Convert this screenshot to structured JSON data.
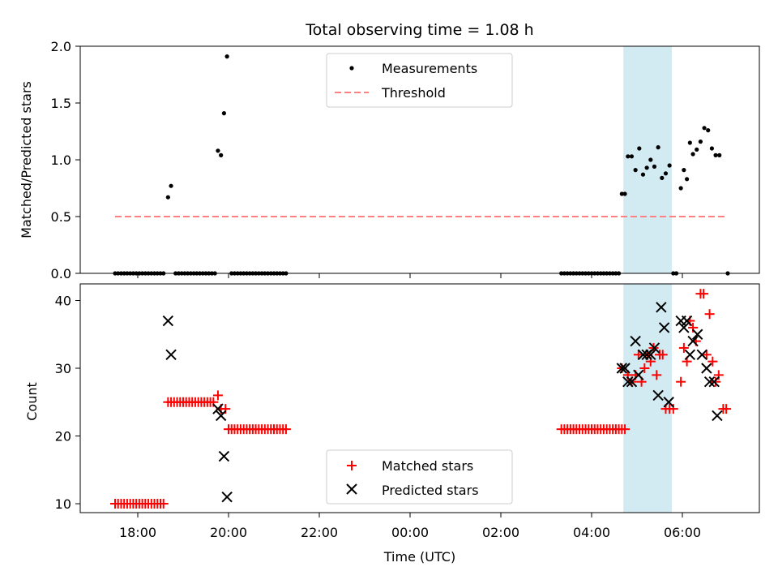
{
  "colors": {
    "measurement": "#000000",
    "threshold": "#ff8080",
    "matched": "#ff0000",
    "predicted": "#000000",
    "highlight": "#add8e6"
  },
  "chart_data": [
    {
      "type": "scatter",
      "title": "Total observing time = 1.08 h",
      "xlabel": "",
      "ylabel": "Matched/Predicted stars",
      "ylim": [
        0,
        2.0
      ],
      "yticks": [
        "0.0",
        "0.5",
        "1.0",
        "1.5",
        "2.0"
      ],
      "xlim": [
        "17:20",
        "07:40"
      ],
      "highlight_span": [
        "04:42",
        "05:46"
      ],
      "legend": {
        "position": "top-center",
        "entries": [
          "Measurements",
          "Threshold"
        ]
      },
      "threshold": {
        "name": "Threshold",
        "value": 0.5,
        "x_range": [
          "17:30",
          "07:00"
        ]
      },
      "series": [
        {
          "name": "Measurements",
          "points": [
            [
              "17:30",
              0
            ],
            [
              "17:34",
              0
            ],
            [
              "17:38",
              0
            ],
            [
              "17:42",
              0
            ],
            [
              "17:46",
              0
            ],
            [
              "17:50",
              0
            ],
            [
              "17:54",
              0
            ],
            [
              "17:58",
              0
            ],
            [
              "18:02",
              0
            ],
            [
              "18:06",
              0
            ],
            [
              "18:10",
              0
            ],
            [
              "18:14",
              0
            ],
            [
              "18:18",
              0
            ],
            [
              "18:22",
              0
            ],
            [
              "18:26",
              0
            ],
            [
              "18:30",
              0
            ],
            [
              "18:34",
              0
            ],
            [
              "18:40",
              0.67
            ],
            [
              "18:44",
              0.77
            ],
            [
              "18:50",
              0
            ],
            [
              "18:54",
              0
            ],
            [
              "18:58",
              0
            ],
            [
              "19:02",
              0
            ],
            [
              "19:06",
              0
            ],
            [
              "19:10",
              0
            ],
            [
              "19:14",
              0
            ],
            [
              "19:18",
              0
            ],
            [
              "19:22",
              0
            ],
            [
              "19:26",
              0
            ],
            [
              "19:30",
              0
            ],
            [
              "19:34",
              0
            ],
            [
              "19:38",
              0
            ],
            [
              "19:42",
              0
            ],
            [
              "19:46",
              1.08
            ],
            [
              "19:50",
              1.04
            ],
            [
              "19:54",
              1.41
            ],
            [
              "19:58",
              1.91
            ],
            [
              "20:04",
              0
            ],
            [
              "20:08",
              0
            ],
            [
              "20:12",
              0
            ],
            [
              "20:16",
              0
            ],
            [
              "20:20",
              0
            ],
            [
              "20:24",
              0
            ],
            [
              "20:28",
              0
            ],
            [
              "20:32",
              0
            ],
            [
              "20:36",
              0
            ],
            [
              "20:40",
              0
            ],
            [
              "20:44",
              0
            ],
            [
              "20:48",
              0
            ],
            [
              "20:52",
              0
            ],
            [
              "20:56",
              0
            ],
            [
              "21:00",
              0
            ],
            [
              "21:04",
              0
            ],
            [
              "21:08",
              0
            ],
            [
              "21:12",
              0
            ],
            [
              "21:16",
              0
            ],
            [
              "03:20",
              0
            ],
            [
              "03:24",
              0
            ],
            [
              "03:28",
              0
            ],
            [
              "03:32",
              0
            ],
            [
              "03:36",
              0
            ],
            [
              "03:40",
              0
            ],
            [
              "03:44",
              0
            ],
            [
              "03:48",
              0
            ],
            [
              "03:52",
              0
            ],
            [
              "03:56",
              0
            ],
            [
              "04:00",
              0
            ],
            [
              "04:04",
              0
            ],
            [
              "04:08",
              0
            ],
            [
              "04:12",
              0
            ],
            [
              "04:16",
              0
            ],
            [
              "04:20",
              0
            ],
            [
              "04:24",
              0
            ],
            [
              "04:28",
              0
            ],
            [
              "04:32",
              0
            ],
            [
              "04:36",
              0
            ],
            [
              "04:40",
              0.7
            ],
            [
              "04:44",
              0.7
            ],
            [
              "04:48",
              1.03
            ],
            [
              "04:53",
              1.03
            ],
            [
              "04:58",
              0.91
            ],
            [
              "05:03",
              1.1
            ],
            [
              "05:08",
              0.87
            ],
            [
              "05:13",
              0.93
            ],
            [
              "05:18",
              1.0
            ],
            [
              "05:23",
              0.94
            ],
            [
              "05:28",
              1.11
            ],
            [
              "05:33",
              0.84
            ],
            [
              "05:38",
              0.88
            ],
            [
              "05:43",
              0.95
            ],
            [
              "05:48",
              0
            ],
            [
              "05:52",
              0
            ],
            [
              "05:58",
              0.75
            ],
            [
              "06:02",
              0.91
            ],
            [
              "06:06",
              0.83
            ],
            [
              "06:10",
              1.15
            ],
            [
              "06:14",
              1.05
            ],
            [
              "06:19",
              1.09
            ],
            [
              "06:24",
              1.16
            ],
            [
              "06:29",
              1.28
            ],
            [
              "06:34",
              1.26
            ],
            [
              "06:39",
              1.1
            ],
            [
              "06:44",
              1.04
            ],
            [
              "06:49",
              1.04
            ],
            [
              "07:00",
              0
            ]
          ]
        }
      ]
    },
    {
      "type": "scatter",
      "title": "",
      "xlabel": "Time (UTC)",
      "ylabel": "Count",
      "ylim": [
        8.5,
        42.5
      ],
      "yticks": [
        "10",
        "20",
        "30",
        "40"
      ],
      "xticks": [
        "18:00",
        "20:00",
        "22:00",
        "00:00",
        "02:00",
        "04:00",
        "06:00"
      ],
      "xlim": [
        "17:20",
        "07:40"
      ],
      "highlight_span": [
        "04:42",
        "05:46"
      ],
      "legend": {
        "position": "bottom-center",
        "entries": [
          "Matched stars",
          "Predicted stars"
        ]
      },
      "series": [
        {
          "name": "Matched stars",
          "marker": "plus",
          "points": [
            [
              "17:30",
              10
            ],
            [
              "17:34",
              10
            ],
            [
              "17:38",
              10
            ],
            [
              "17:42",
              10
            ],
            [
              "17:46",
              10
            ],
            [
              "17:50",
              10
            ],
            [
              "17:54",
              10
            ],
            [
              "17:58",
              10
            ],
            [
              "18:02",
              10
            ],
            [
              "18:06",
              10
            ],
            [
              "18:10",
              10
            ],
            [
              "18:14",
              10
            ],
            [
              "18:18",
              10
            ],
            [
              "18:22",
              10
            ],
            [
              "18:26",
              10
            ],
            [
              "18:30",
              10
            ],
            [
              "18:34",
              10
            ],
            [
              "18:40",
              25
            ],
            [
              "18:44",
              25
            ],
            [
              "18:48",
              25
            ],
            [
              "18:52",
              25
            ],
            [
              "18:56",
              25
            ],
            [
              "19:00",
              25
            ],
            [
              "19:04",
              25
            ],
            [
              "19:08",
              25
            ],
            [
              "19:12",
              25
            ],
            [
              "19:16",
              25
            ],
            [
              "19:20",
              25
            ],
            [
              "19:24",
              25
            ],
            [
              "19:28",
              25
            ],
            [
              "19:32",
              25
            ],
            [
              "19:36",
              25
            ],
            [
              "19:40",
              25
            ],
            [
              "19:46",
              26
            ],
            [
              "19:50",
              24
            ],
            [
              "19:56",
              24
            ],
            [
              "20:00",
              21
            ],
            [
              "20:04",
              21
            ],
            [
              "20:08",
              21
            ],
            [
              "20:12",
              21
            ],
            [
              "20:16",
              21
            ],
            [
              "20:20",
              21
            ],
            [
              "20:24",
              21
            ],
            [
              "20:28",
              21
            ],
            [
              "20:32",
              21
            ],
            [
              "20:36",
              21
            ],
            [
              "20:40",
              21
            ],
            [
              "20:44",
              21
            ],
            [
              "20:48",
              21
            ],
            [
              "20:52",
              21
            ],
            [
              "20:56",
              21
            ],
            [
              "21:00",
              21
            ],
            [
              "21:04",
              21
            ],
            [
              "21:08",
              21
            ],
            [
              "21:12",
              21
            ],
            [
              "21:16",
              21
            ],
            [
              "03:20",
              21
            ],
            [
              "03:24",
              21
            ],
            [
              "03:28",
              21
            ],
            [
              "03:32",
              21
            ],
            [
              "03:36",
              21
            ],
            [
              "03:40",
              21
            ],
            [
              "03:44",
              21
            ],
            [
              "03:48",
              21
            ],
            [
              "03:52",
              21
            ],
            [
              "03:56",
              21
            ],
            [
              "04:00",
              21
            ],
            [
              "04:04",
              21
            ],
            [
              "04:08",
              21
            ],
            [
              "04:12",
              21
            ],
            [
              "04:16",
              21
            ],
            [
              "04:20",
              21
            ],
            [
              "04:24",
              21
            ],
            [
              "04:28",
              21
            ],
            [
              "04:32",
              21
            ],
            [
              "04:36",
              21
            ],
            [
              "04:40",
              21
            ],
            [
              "04:44",
              21
            ],
            [
              "04:40",
              30
            ],
            [
              "04:48",
              29
            ],
            [
              "04:53",
              28
            ],
            [
              "04:58",
              29
            ],
            [
              "05:02",
              32
            ],
            [
              "05:06",
              28
            ],
            [
              "05:10",
              30
            ],
            [
              "05:14",
              32
            ],
            [
              "05:18",
              31
            ],
            [
              "05:22",
              33
            ],
            [
              "05:26",
              29
            ],
            [
              "05:30",
              32
            ],
            [
              "05:34",
              32
            ],
            [
              "05:38",
              24
            ],
            [
              "05:43",
              24
            ],
            [
              "05:48",
              24
            ],
            [
              "05:58",
              28
            ],
            [
              "06:02",
              33
            ],
            [
              "06:06",
              31
            ],
            [
              "06:10",
              37
            ],
            [
              "06:14",
              36
            ],
            [
              "06:18",
              34
            ],
            [
              "06:24",
              41
            ],
            [
              "06:28",
              41
            ],
            [
              "06:32",
              32
            ],
            [
              "06:36",
              38
            ],
            [
              "06:40",
              31
            ],
            [
              "06:44",
              28
            ],
            [
              "06:48",
              29
            ],
            [
              "06:54",
              24
            ],
            [
              "06:58",
              24
            ]
          ]
        },
        {
          "name": "Predicted stars",
          "marker": "x",
          "points": [
            [
              "18:40",
              37
            ],
            [
              "18:44",
              32
            ],
            [
              "19:46",
              24
            ],
            [
              "19:50",
              23
            ],
            [
              "19:54",
              17
            ],
            [
              "19:58",
              11
            ],
            [
              "04:40",
              30
            ],
            [
              "04:44",
              30
            ],
            [
              "04:48",
              28
            ],
            [
              "04:53",
              28
            ],
            [
              "04:58",
              34
            ],
            [
              "05:02",
              29
            ],
            [
              "05:08",
              32
            ],
            [
              "05:13",
              32
            ],
            [
              "05:18",
              32
            ],
            [
              "05:23",
              33
            ],
            [
              "05:28",
              26
            ],
            [
              "05:32",
              39
            ],
            [
              "05:36",
              36
            ],
            [
              "05:42",
              25
            ],
            [
              "05:58",
              37
            ],
            [
              "06:02",
              36
            ],
            [
              "06:06",
              37
            ],
            [
              "06:10",
              32
            ],
            [
              "06:14",
              34
            ],
            [
              "06:20",
              35
            ],
            [
              "06:26",
              32
            ],
            [
              "06:32",
              30
            ],
            [
              "06:36",
              28
            ],
            [
              "06:42",
              28
            ],
            [
              "06:46",
              23
            ]
          ]
        }
      ]
    }
  ]
}
